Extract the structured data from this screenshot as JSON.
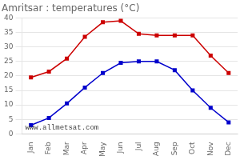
{
  "chart_data": {
    "type": "line",
    "title": "Amritsar : temperatures (°C)",
    "categories": [
      "Jan",
      "Feb",
      "Mar",
      "Apr",
      "May",
      "Jun",
      "Jul",
      "Aug",
      "Sep",
      "Oct",
      "Nov",
      "Dec"
    ],
    "series": [
      {
        "color": "#cc0000",
        "values": [
          19.5,
          21.5,
          26,
          33.5,
          38.5,
          39,
          34.5,
          34,
          34,
          34,
          27,
          21
        ]
      },
      {
        "color": "#0000cc",
        "values": [
          3,
          5.5,
          10.5,
          16,
          21,
          24.5,
          25,
          25,
          22,
          15,
          9,
          4
        ]
      }
    ],
    "marker": "square",
    "line_style": "solid",
    "ylim": [
      0,
      40
    ],
    "yticks": [
      0,
      5,
      10,
      15,
      20,
      25,
      30,
      35,
      40
    ],
    "grid": "y",
    "annotations": [
      "www.allmetsat.com"
    ]
  }
}
